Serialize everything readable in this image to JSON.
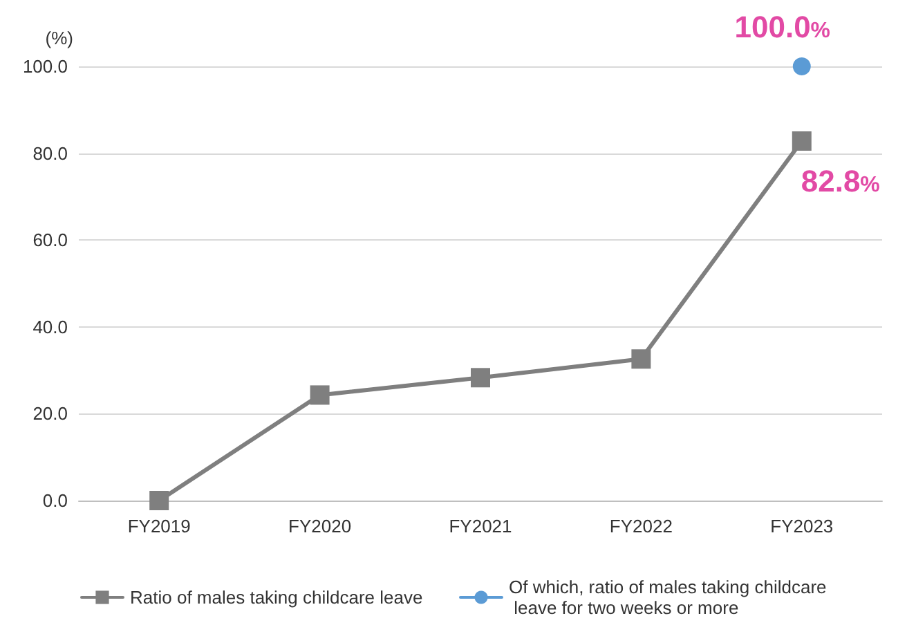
{
  "chart_data": {
    "type": "line",
    "ylabel": "(%)",
    "categories": [
      "FY2019",
      "FY2020",
      "FY2021",
      "FY2022",
      "FY2023"
    ],
    "series": [
      {
        "name": "Ratio of males taking childcare leave",
        "color": "#7f7f7f",
        "marker": "square",
        "values": [
          0,
          24.3,
          28.3,
          32.6,
          82.8
        ],
        "value_labels": [
          null,
          null,
          null,
          null,
          "82.8%"
        ]
      },
      {
        "name": "Of which, ratio of males taking childcare leave for two weeks or more",
        "color": "#5b9bd5",
        "marker": "circle",
        "values": [
          null,
          null,
          null,
          null,
          100.0
        ],
        "value_labels": [
          null,
          null,
          null,
          null,
          "100.0%"
        ]
      }
    ],
    "ylim": [
      0,
      100
    ],
    "yticks": [
      {
        "value": 0,
        "label": "0.0"
      },
      {
        "value": 20,
        "label": "20.0"
      },
      {
        "value": 40,
        "label": "40.0"
      },
      {
        "value": 60,
        "label": "60.0"
      },
      {
        "value": 80,
        "label": "80.0"
      },
      {
        "value": 100,
        "label": "100.0"
      }
    ],
    "grid": "y",
    "legend": "bottom"
  }
}
